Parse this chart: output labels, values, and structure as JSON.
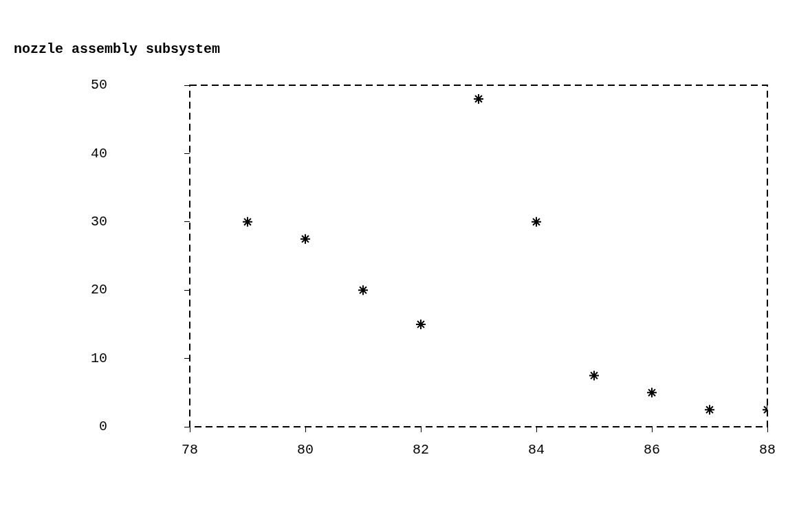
{
  "chart_data": {
    "type": "scatter",
    "title": "nozzle assembly subsystem",
    "x": [
      79,
      80,
      81,
      82,
      83,
      84,
      85,
      86,
      87,
      88
    ],
    "series": [
      {
        "color": "#000000",
        "values": [
          30,
          27.5,
          20,
          15,
          48,
          30,
          7.5,
          5,
          2.5,
          2.5
        ]
      }
    ],
    "xlim": [
      78,
      88
    ],
    "ylim": [
      0,
      50
    ],
    "xticks": [
      78,
      80,
      82,
      84,
      86,
      88
    ],
    "yticks": [
      0,
      10,
      20,
      30,
      40,
      50
    ],
    "grid": false,
    "legend": false,
    "marker": "cross"
  }
}
